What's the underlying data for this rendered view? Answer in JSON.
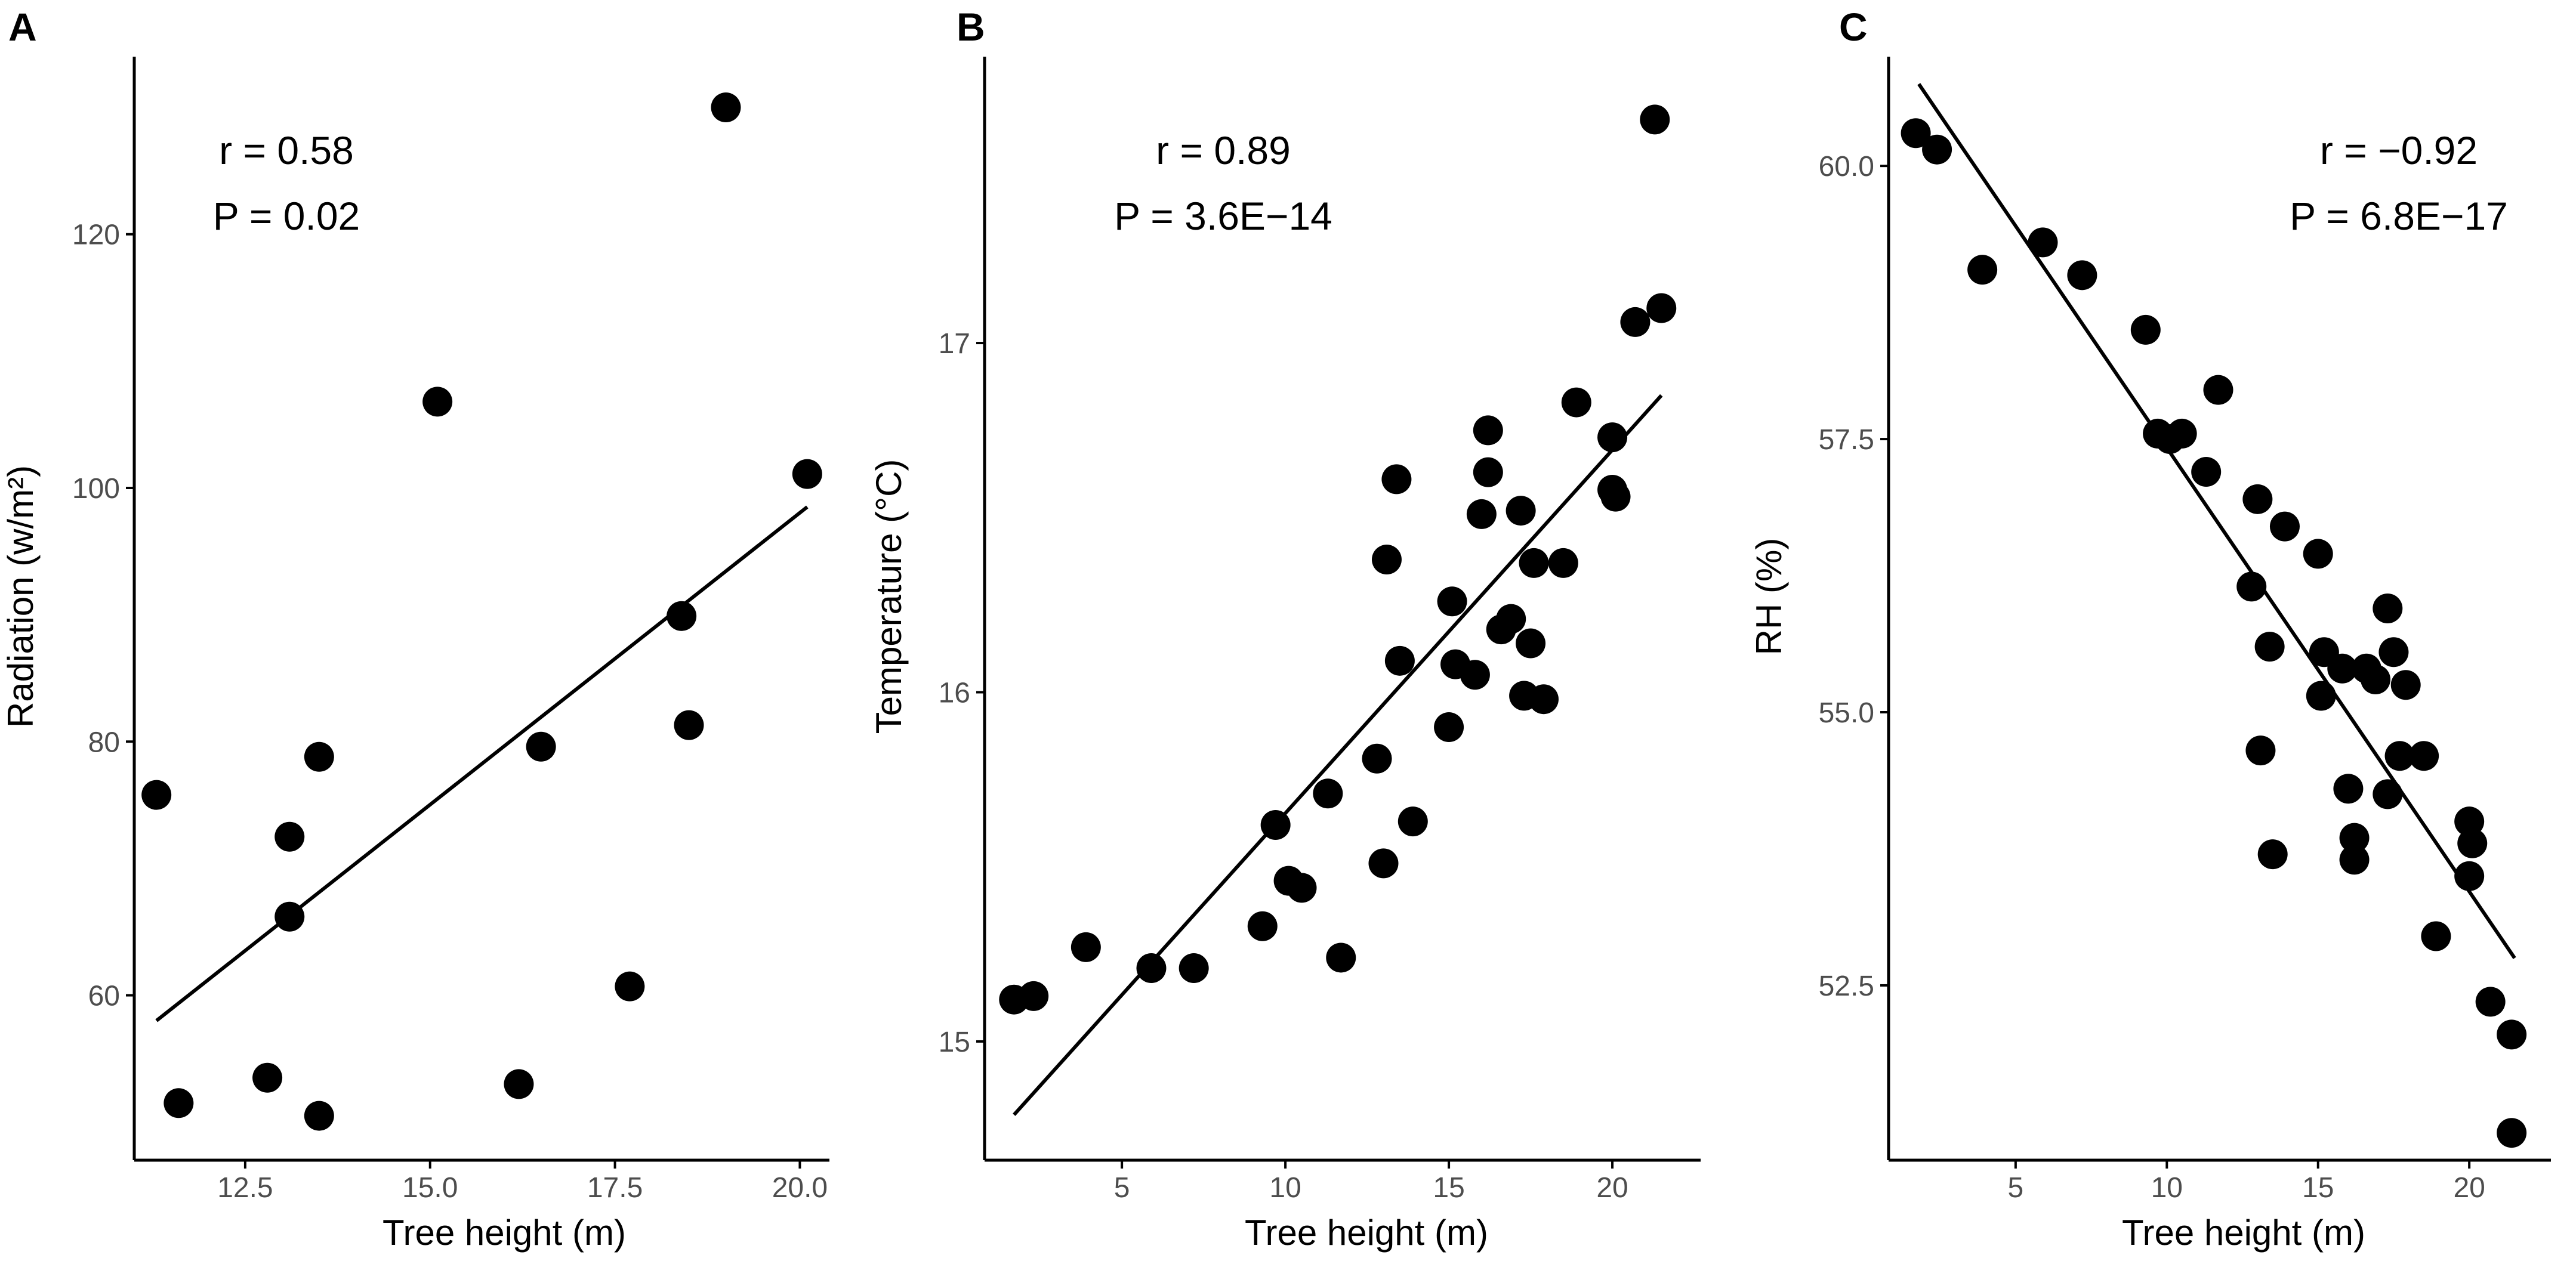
{
  "chart_data": [
    {
      "type": "scatter",
      "panel": "A",
      "xlabel": "Tree height (m)",
      "ylabel": "Radiation (w/m²)",
      "xlim": [
        11.0,
        20.4
      ],
      "ylim": [
        47,
        134
      ],
      "x_ticks": [
        12.5,
        15.0,
        17.5,
        20.0
      ],
      "x_tick_labels": [
        "12.5",
        "15.0",
        "17.5",
        "20.0"
      ],
      "y_ticks": [
        60,
        80,
        100,
        120
      ],
      "y_tick_labels": [
        "60",
        "80",
        "100",
        "120"
      ],
      "annotation_r": "r = 0.58",
      "annotation_p": "P = 0.02",
      "annotation_anchor": "top-left",
      "fit_line": {
        "x": [
          11.3,
          20.1
        ],
        "y": [
          58.0,
          98.5
        ]
      },
      "points": [
        {
          "x": 11.3,
          "y": 75.8
        },
        {
          "x": 11.6,
          "y": 51.5
        },
        {
          "x": 12.8,
          "y": 53.5
        },
        {
          "x": 13.1,
          "y": 72.5
        },
        {
          "x": 13.1,
          "y": 66.2
        },
        {
          "x": 13.5,
          "y": 78.8
        },
        {
          "x": 13.5,
          "y": 50.5
        },
        {
          "x": 15.1,
          "y": 106.8
        },
        {
          "x": 16.2,
          "y": 53.0
        },
        {
          "x": 16.5,
          "y": 79.6
        },
        {
          "x": 17.7,
          "y": 60.7
        },
        {
          "x": 18.4,
          "y": 89.9
        },
        {
          "x": 18.5,
          "y": 81.3
        },
        {
          "x": 19.0,
          "y": 130.0
        },
        {
          "x": 20.1,
          "y": 101.1
        }
      ]
    },
    {
      "type": "scatter",
      "panel": "B",
      "xlabel": "Tree height (m)",
      "ylabel": "Temperature (°C)",
      "xlim": [
        0.8,
        22.7
      ],
      "ylim": [
        14.66,
        17.82
      ],
      "x_ticks": [
        5,
        10,
        15,
        20
      ],
      "x_tick_labels": [
        "5",
        "10",
        "15",
        "20"
      ],
      "y_ticks": [
        15,
        16,
        17
      ],
      "y_tick_labels": [
        "15",
        "16",
        "17"
      ],
      "annotation_r": "r = 0.89",
      "annotation_p": "P = 3.6E−14",
      "annotation_anchor": "top-left",
      "fit_line": {
        "x": [
          1.7,
          21.5
        ],
        "y": [
          14.79,
          16.85
        ]
      },
      "points": [
        {
          "x": 1.7,
          "y": 15.12
        },
        {
          "x": 2.3,
          "y": 15.13
        },
        {
          "x": 3.9,
          "y": 15.27
        },
        {
          "x": 5.9,
          "y": 15.21
        },
        {
          "x": 7.2,
          "y": 15.21
        },
        {
          "x": 9.3,
          "y": 15.33
        },
        {
          "x": 9.7,
          "y": 15.62
        },
        {
          "x": 10.1,
          "y": 15.46
        },
        {
          "x": 10.5,
          "y": 15.44
        },
        {
          "x": 11.3,
          "y": 15.71
        },
        {
          "x": 11.7,
          "y": 15.24
        },
        {
          "x": 12.8,
          "y": 15.81
        },
        {
          "x": 13.0,
          "y": 15.51
        },
        {
          "x": 13.1,
          "y": 16.38
        },
        {
          "x": 13.4,
          "y": 16.61
        },
        {
          "x": 13.5,
          "y": 16.09
        },
        {
          "x": 13.9,
          "y": 15.63
        },
        {
          "x": 15.0,
          "y": 15.9
        },
        {
          "x": 15.1,
          "y": 16.26
        },
        {
          "x": 15.2,
          "y": 16.08
        },
        {
          "x": 15.8,
          "y": 16.05
        },
        {
          "x": 16.0,
          "y": 16.51
        },
        {
          "x": 16.2,
          "y": 16.75
        },
        {
          "x": 16.2,
          "y": 16.63
        },
        {
          "x": 16.6,
          "y": 16.18
        },
        {
          "x": 16.9,
          "y": 16.21
        },
        {
          "x": 17.2,
          "y": 16.52
        },
        {
          "x": 17.3,
          "y": 15.99
        },
        {
          "x": 17.5,
          "y": 16.14
        },
        {
          "x": 17.6,
          "y": 16.37
        },
        {
          "x": 17.9,
          "y": 15.98
        },
        {
          "x": 18.5,
          "y": 16.37
        },
        {
          "x": 18.9,
          "y": 16.83
        },
        {
          "x": 20.0,
          "y": 16.73
        },
        {
          "x": 20.0,
          "y": 16.58
        },
        {
          "x": 20.1,
          "y": 16.56
        },
        {
          "x": 20.7,
          "y": 17.06
        },
        {
          "x": 21.3,
          "y": 17.64
        },
        {
          "x": 21.5,
          "y": 17.1
        }
      ]
    },
    {
      "type": "scatter",
      "panel": "C",
      "xlabel": "Tree height (m)",
      "ylabel": "RH (%)",
      "xlim": [
        0.8,
        22.7
      ],
      "ylim": [
        50.9,
        61.0
      ],
      "x_ticks": [
        5,
        10,
        15,
        20
      ],
      "x_tick_labels": [
        "5",
        "10",
        "15",
        "20"
      ],
      "y_ticks": [
        52.5,
        55.0,
        57.5,
        60.0
      ],
      "y_tick_labels": [
        "52.5",
        "55.0",
        "57.5",
        "60.0"
      ],
      "annotation_r": "r = −0.92",
      "annotation_p": "P = 6.8E−17",
      "annotation_anchor": "top-right",
      "fit_line": {
        "x": [
          1.8,
          21.5
        ],
        "y": [
          60.75,
          52.75
        ]
      },
      "points": [
        {
          "x": 1.7,
          "y": 60.3
        },
        {
          "x": 2.4,
          "y": 60.15
        },
        {
          "x": 3.9,
          "y": 59.05
        },
        {
          "x": 5.9,
          "y": 59.3
        },
        {
          "x": 7.2,
          "y": 59.0
        },
        {
          "x": 9.3,
          "y": 58.5
        },
        {
          "x": 9.7,
          "y": 57.55
        },
        {
          "x": 10.1,
          "y": 57.5
        },
        {
          "x": 10.5,
          "y": 57.55
        },
        {
          "x": 11.3,
          "y": 57.2
        },
        {
          "x": 11.7,
          "y": 57.95
        },
        {
          "x": 12.8,
          "y": 56.15
        },
        {
          "x": 13.0,
          "y": 56.95
        },
        {
          "x": 13.1,
          "y": 54.65
        },
        {
          "x": 13.4,
          "y": 55.6
        },
        {
          "x": 13.5,
          "y": 53.7
        },
        {
          "x": 13.9,
          "y": 56.7
        },
        {
          "x": 15.0,
          "y": 56.45
        },
        {
          "x": 15.1,
          "y": 55.15
        },
        {
          "x": 15.2,
          "y": 55.55
        },
        {
          "x": 15.8,
          "y": 55.4
        },
        {
          "x": 16.0,
          "y": 54.3
        },
        {
          "x": 16.2,
          "y": 53.85
        },
        {
          "x": 16.2,
          "y": 53.65
        },
        {
          "x": 16.6,
          "y": 55.4
        },
        {
          "x": 16.9,
          "y": 55.3
        },
        {
          "x": 17.3,
          "y": 55.95
        },
        {
          "x": 17.3,
          "y": 54.25
        },
        {
          "x": 17.5,
          "y": 55.55
        },
        {
          "x": 17.7,
          "y": 54.6
        },
        {
          "x": 17.9,
          "y": 55.25
        },
        {
          "x": 18.5,
          "y": 54.6
        },
        {
          "x": 18.9,
          "y": 52.95
        },
        {
          "x": 20.0,
          "y": 54.0
        },
        {
          "x": 20.0,
          "y": 53.5
        },
        {
          "x": 20.1,
          "y": 53.8
        },
        {
          "x": 20.7,
          "y": 52.35
        },
        {
          "x": 21.4,
          "y": 52.05
        },
        {
          "x": 21.4,
          "y": 51.15
        }
      ]
    }
  ]
}
